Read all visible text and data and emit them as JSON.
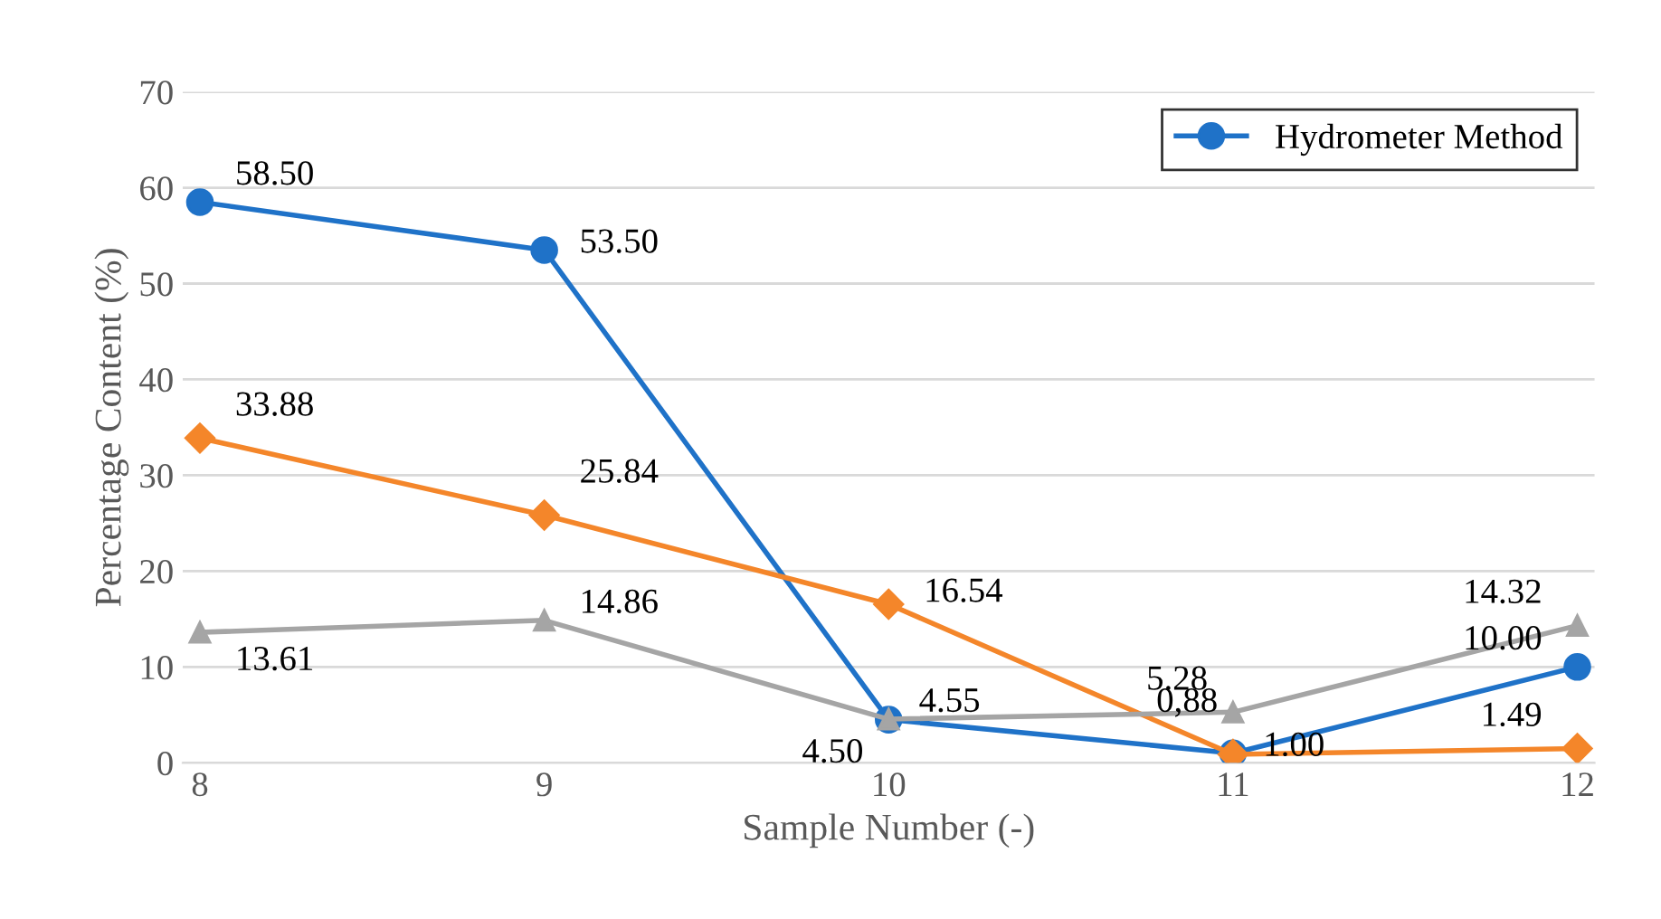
{
  "chart_data": {
    "type": "line",
    "xlabel": "Sample Number (-)",
    "ylabel": "Percentage Content (%)",
    "categories": [
      "8",
      "9",
      "10",
      "11",
      "12"
    ],
    "series": [
      {
        "name": "Hydrometer Method",
        "color": "#1f72c8",
        "marker": "circle",
        "values": [
          58.5,
          53.5,
          4.5,
          1.0,
          10.0
        ],
        "value_labels": [
          "58.50",
          "53.50",
          "4.50",
          "1.00",
          "10.00"
        ]
      },
      {
        "color": "#f4862a",
        "marker": "diamond",
        "values": [
          33.88,
          25.84,
          16.54,
          0.88,
          1.49
        ],
        "value_labels": [
          "33.88",
          "25.84",
          "16.54",
          "0,88",
          "1.49"
        ]
      },
      {
        "color": "#a5a5a5",
        "marker": "triangle",
        "values": [
          13.61,
          14.86,
          4.55,
          5.28,
          14.32
        ],
        "value_labels": [
          "13.61",
          "14.86",
          "4.55",
          "5.28",
          "14.32"
        ]
      }
    ],
    "ylim": [
      0,
      70
    ],
    "yticks": [
      0,
      10,
      20,
      30,
      40,
      50,
      60,
      70
    ],
    "grid": "y",
    "legend": "top right",
    "line_style": "solid"
  }
}
